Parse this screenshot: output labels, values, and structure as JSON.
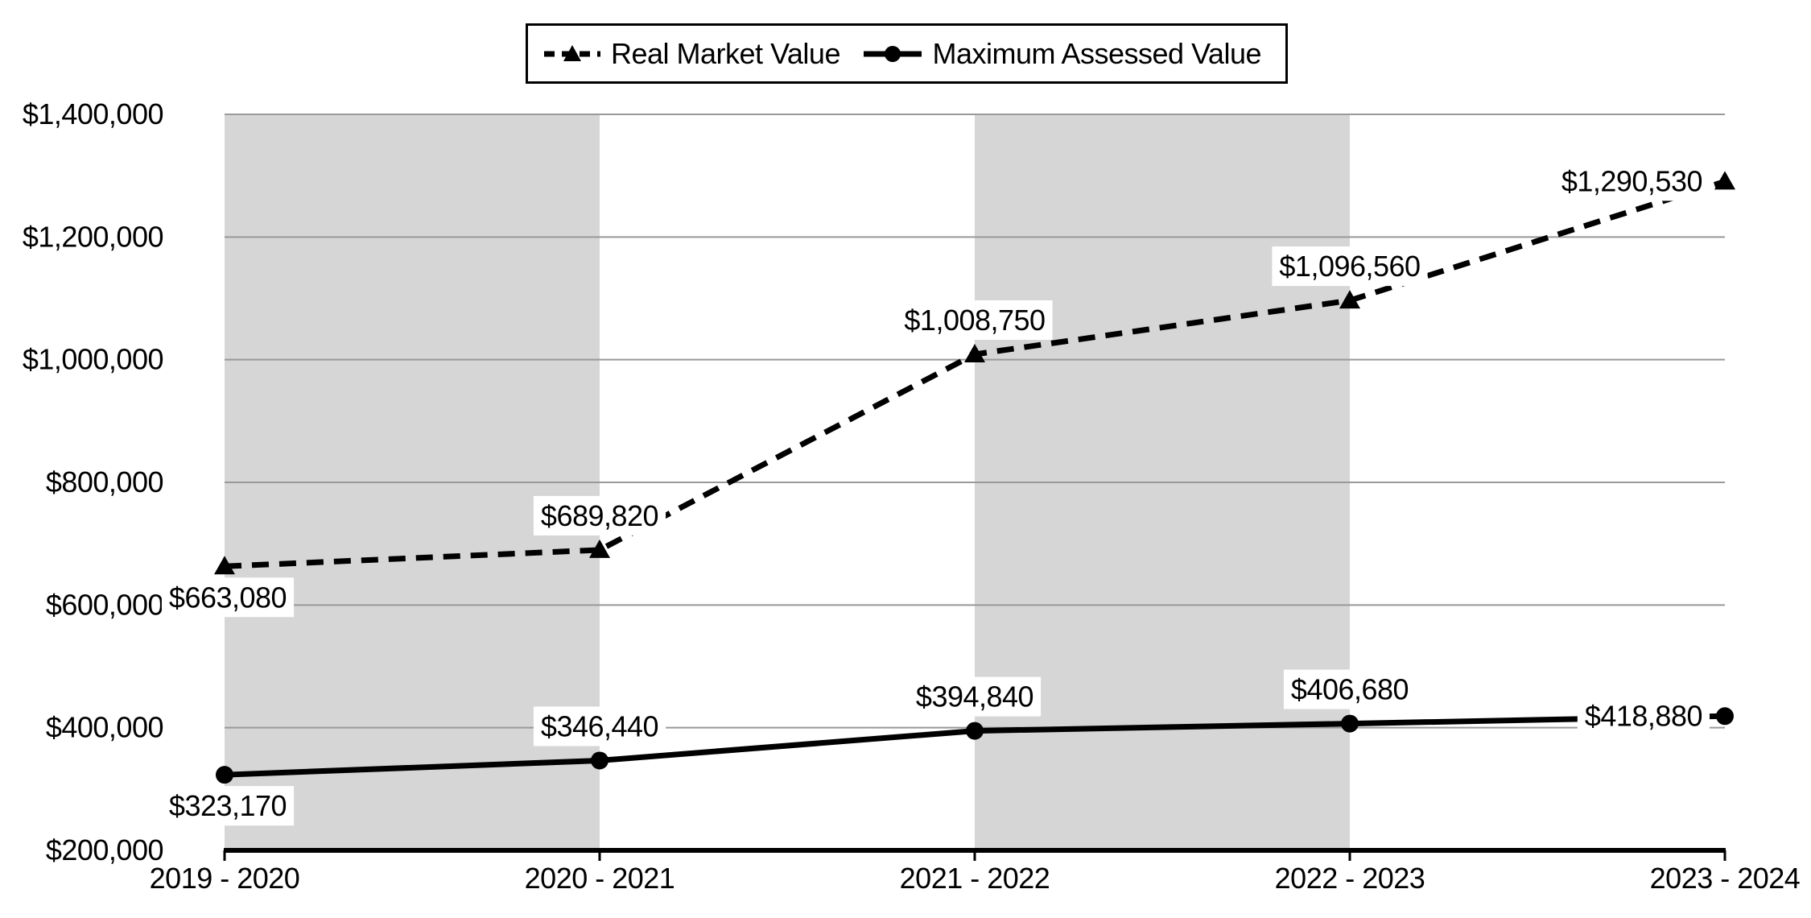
{
  "legend": {
    "items": [
      {
        "label": "Real Market Value",
        "line_style": "dashed",
        "marker": "triangle"
      },
      {
        "label": "Maximum Assessed Value",
        "line_style": "solid",
        "marker": "circle"
      }
    ]
  },
  "chart_data": {
    "type": "line",
    "title": "",
    "categories": [
      "2019 - 2020",
      "2020 - 2021",
      "2021 - 2022",
      "2022 - 2023",
      "2023 - 2024"
    ],
    "series": [
      {
        "name": "Real Market Value",
        "line_style": "dashed",
        "marker": "triangle",
        "color": "#000000",
        "values": [
          663080,
          689820,
          1008750,
          1096560,
          1290530
        ],
        "point_labels": [
          "$663,080",
          "$689,820",
          "$1,008,750",
          "$1,096,560",
          "$1,290,530"
        ],
        "label_positions": [
          "below",
          "above",
          "above",
          "above",
          "left"
        ]
      },
      {
        "name": "Maximum Assessed Value",
        "line_style": "solid",
        "marker": "circle",
        "color": "#000000",
        "values": [
          323170,
          346440,
          394840,
          406680,
          418880
        ],
        "point_labels": [
          "$323,170",
          "$346,440",
          "$394,840",
          "$406,680",
          "$418,880"
        ],
        "label_positions": [
          "below",
          "above",
          "above",
          "above",
          "left"
        ]
      }
    ],
    "y_axis": {
      "min": 200000,
      "max": 1400000,
      "step": 200000,
      "tick_labels": [
        "$200,000",
        "$400,000",
        "$600,000",
        "$800,000",
        "$1,000,000",
        "$1,200,000",
        "$1,400,000"
      ]
    },
    "x_axis": {
      "tick_labels": [
        "2019 - 2020",
        "2020 - 2021",
        "2021 - 2022",
        "2022 - 2023",
        "2023 - 2024"
      ]
    },
    "plot_bands": {
      "intervals": [
        [
          0,
          1
        ],
        [
          2,
          3
        ]
      ],
      "color": "#d6d6d6"
    },
    "grid": {
      "show": true,
      "color": "#999999"
    },
    "axis_color": "#000000",
    "data_label_background": "#ffffff",
    "legend_position": "top"
  }
}
